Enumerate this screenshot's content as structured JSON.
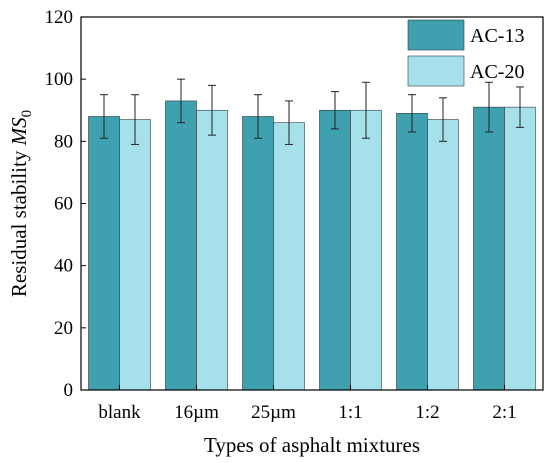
{
  "chart_data": {
    "type": "bar",
    "xlabel": "Types of asphalt mixtures",
    "ylabel_prefix": "Residual stability ",
    "ylabel_symbol": "MS",
    "ylabel_subscript": "0",
    "categories": [
      "blank",
      "16µm",
      "25µm",
      "1:1",
      "1:2",
      "2:1"
    ],
    "ylim": [
      0,
      120
    ],
    "yticks": [
      "0",
      "20",
      "40",
      "60",
      "80",
      "100",
      "120"
    ],
    "legend_position": "top-right",
    "series": [
      {
        "name": "AC-13",
        "color": "#3fa0b0",
        "values": [
          88,
          93,
          88,
          90,
          89,
          91
        ],
        "errors": [
          7,
          7,
          7,
          6,
          6,
          8
        ]
      },
      {
        "name": "AC-20",
        "color": "#a5e0eb",
        "values": [
          87,
          90,
          86,
          90,
          87,
          91
        ],
        "errors": [
          8,
          8,
          7,
          9,
          7,
          6.5
        ]
      }
    ]
  }
}
